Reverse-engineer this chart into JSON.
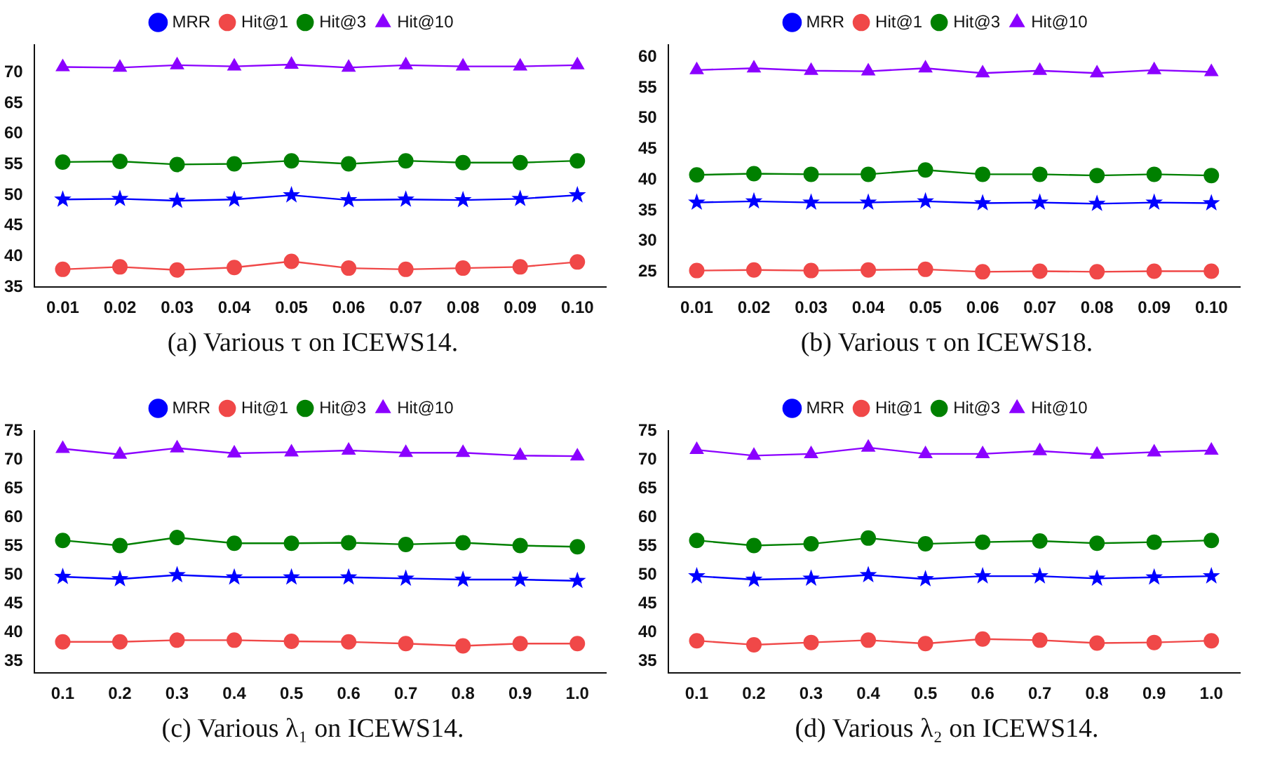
{
  "chart_data": [
    {
      "type": "line",
      "title": "(a) Various τ on ICEWS14.",
      "categories": [
        "0.01",
        "0.02",
        "0.03",
        "0.04",
        "0.05",
        "0.06",
        "0.07",
        "0.08",
        "0.09",
        "0.10"
      ],
      "ylim": [
        35,
        74.5
      ],
      "yticks": [
        35,
        40,
        45,
        50,
        55,
        60,
        65,
        70
      ],
      "grid": false,
      "legend": "top",
      "line_style": "solid",
      "series": [
        {
          "name": "MRR",
          "color": "#0000ff",
          "marker": "star",
          "values": [
            49.3,
            49.4,
            49.1,
            49.3,
            50.0,
            49.2,
            49.3,
            49.2,
            49.4,
            50.0
          ]
        },
        {
          "name": "Hit@1",
          "color": "#f04848",
          "marker": "circle",
          "values": [
            37.9,
            38.3,
            37.8,
            38.2,
            39.2,
            38.1,
            37.9,
            38.1,
            38.3,
            39.1
          ]
        },
        {
          "name": "Hit@3",
          "color": "#008000",
          "marker": "circle",
          "values": [
            55.4,
            55.5,
            55.0,
            55.1,
            55.6,
            55.1,
            55.6,
            55.3,
            55.3,
            55.6
          ]
        },
        {
          "name": "Hit@10",
          "color": "#8b00ff",
          "marker": "triangle",
          "values": [
            70.9,
            70.8,
            71.2,
            71.0,
            71.3,
            70.8,
            71.2,
            71.0,
            71.0,
            71.2
          ]
        }
      ]
    },
    {
      "type": "line",
      "title": "(b) Various τ on ICEWS18.",
      "categories": [
        "0.01",
        "0.02",
        "0.03",
        "0.04",
        "0.05",
        "0.06",
        "0.07",
        "0.08",
        "0.09",
        "0.10"
      ],
      "ylim": [
        22.5,
        62
      ],
      "yticks": [
        25,
        30,
        35,
        40,
        45,
        50,
        55,
        60
      ],
      "grid": false,
      "legend": "top",
      "line_style": "solid",
      "series": [
        {
          "name": "MRR",
          "color": "#0000ff",
          "marker": "star",
          "values": [
            36.3,
            36.5,
            36.3,
            36.3,
            36.5,
            36.2,
            36.3,
            36.1,
            36.3,
            36.2
          ]
        },
        {
          "name": "Hit@1",
          "color": "#f04848",
          "marker": "circle",
          "values": [
            25.2,
            25.3,
            25.2,
            25.3,
            25.4,
            25.0,
            25.1,
            25.0,
            25.1,
            25.1
          ]
        },
        {
          "name": "Hit@3",
          "color": "#008000",
          "marker": "circle",
          "values": [
            40.8,
            41.0,
            40.9,
            40.9,
            41.6,
            40.9,
            40.9,
            40.7,
            40.9,
            40.7
          ]
        },
        {
          "name": "Hit@10",
          "color": "#8b00ff",
          "marker": "triangle",
          "values": [
            57.9,
            58.2,
            57.8,
            57.7,
            58.2,
            57.4,
            57.8,
            57.4,
            57.9,
            57.6
          ]
        }
      ]
    },
    {
      "type": "line",
      "title": "(c) Various λ₁ on ICEWS14.",
      "categories": [
        "0.1",
        "0.2",
        "0.3",
        "0.4",
        "0.5",
        "0.6",
        "0.7",
        "0.8",
        "0.9",
        "1.0"
      ],
      "ylim": [
        33,
        75
      ],
      "yticks": [
        35,
        40,
        45,
        50,
        55,
        60,
        65,
        70,
        75
      ],
      "grid": false,
      "legend": "top",
      "line_style": "solid",
      "series": [
        {
          "name": "MRR",
          "color": "#0000ff",
          "marker": "star",
          "values": [
            49.7,
            49.3,
            50.0,
            49.6,
            49.6,
            49.6,
            49.4,
            49.2,
            49.2,
            49.0
          ]
        },
        {
          "name": "Hit@1",
          "color": "#f04848",
          "marker": "circle",
          "values": [
            38.4,
            38.4,
            38.7,
            38.7,
            38.5,
            38.4,
            38.1,
            37.7,
            38.1,
            38.1
          ]
        },
        {
          "name": "Hit@3",
          "color": "#008000",
          "marker": "circle",
          "values": [
            56.0,
            55.1,
            56.5,
            55.5,
            55.5,
            55.6,
            55.3,
            55.6,
            55.1,
            54.9
          ]
        },
        {
          "name": "Hit@10",
          "color": "#8b00ff",
          "marker": "triangle",
          "values": [
            71.9,
            70.9,
            72.0,
            71.1,
            71.3,
            71.6,
            71.2,
            71.2,
            70.7,
            70.6
          ]
        }
      ]
    },
    {
      "type": "line",
      "title": "(d) Various λ₂ on ICEWS14.",
      "categories": [
        "0.1",
        "0.2",
        "0.3",
        "0.4",
        "0.5",
        "0.6",
        "0.7",
        "0.8",
        "0.9",
        "1.0"
      ],
      "ylim": [
        33,
        75
      ],
      "yticks": [
        35,
        40,
        45,
        50,
        55,
        60,
        65,
        70,
        75
      ],
      "grid": false,
      "legend": "top",
      "line_style": "solid",
      "series": [
        {
          "name": "MRR",
          "color": "#0000ff",
          "marker": "star",
          "values": [
            49.8,
            49.2,
            49.4,
            50.0,
            49.3,
            49.8,
            49.8,
            49.4,
            49.6,
            49.8
          ]
        },
        {
          "name": "Hit@1",
          "color": "#f04848",
          "marker": "circle",
          "values": [
            38.6,
            37.9,
            38.3,
            38.7,
            38.1,
            38.9,
            38.7,
            38.2,
            38.3,
            38.6
          ]
        },
        {
          "name": "Hit@3",
          "color": "#008000",
          "marker": "circle",
          "values": [
            56.0,
            55.1,
            55.4,
            56.4,
            55.4,
            55.7,
            55.9,
            55.5,
            55.7,
            56.0
          ]
        },
        {
          "name": "Hit@10",
          "color": "#8b00ff",
          "marker": "triangle",
          "values": [
            71.7,
            70.7,
            71.0,
            72.1,
            71.0,
            71.0,
            71.5,
            70.9,
            71.3,
            71.6
          ]
        }
      ]
    }
  ]
}
